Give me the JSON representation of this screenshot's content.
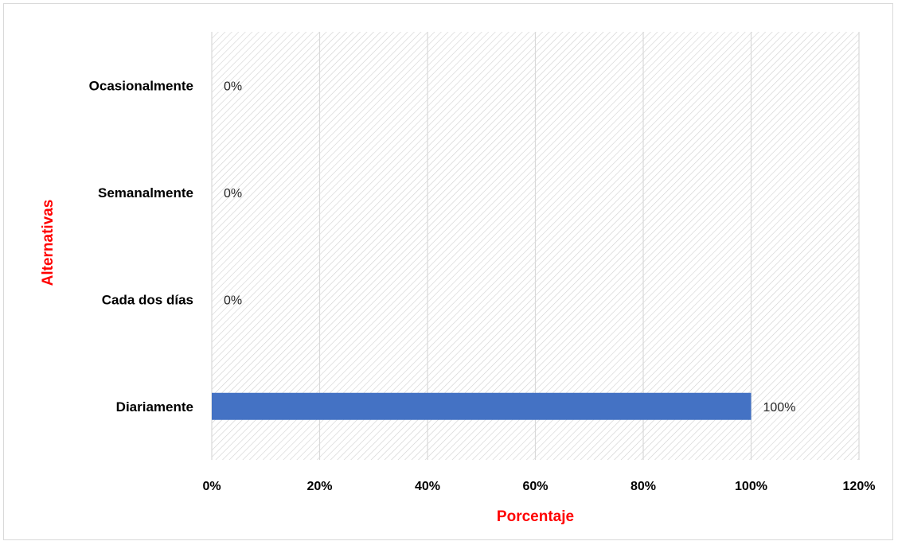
{
  "chart_data": {
    "type": "bar",
    "orientation": "horizontal",
    "categories": [
      "Ocasionalmente",
      "Semanalmente",
      "Cada dos días",
      "Diariamente"
    ],
    "values": [
      0,
      0,
      0,
      100
    ],
    "data_labels": [
      "0%",
      "0%",
      "0%",
      "100%"
    ],
    "xlabel": "Porcentaje",
    "ylabel": "Alternativas",
    "xlim": [
      0,
      120
    ],
    "x_ticks": [
      "0%",
      "20%",
      "40%",
      "60%",
      "80%",
      "100%",
      "120%"
    ],
    "grid": true,
    "legend": "none",
    "colors": {
      "bar": "#4472C4",
      "axis_title": "#FF0000",
      "gridline": "#D9D9D9",
      "hatch": "#D0D0D0"
    }
  }
}
